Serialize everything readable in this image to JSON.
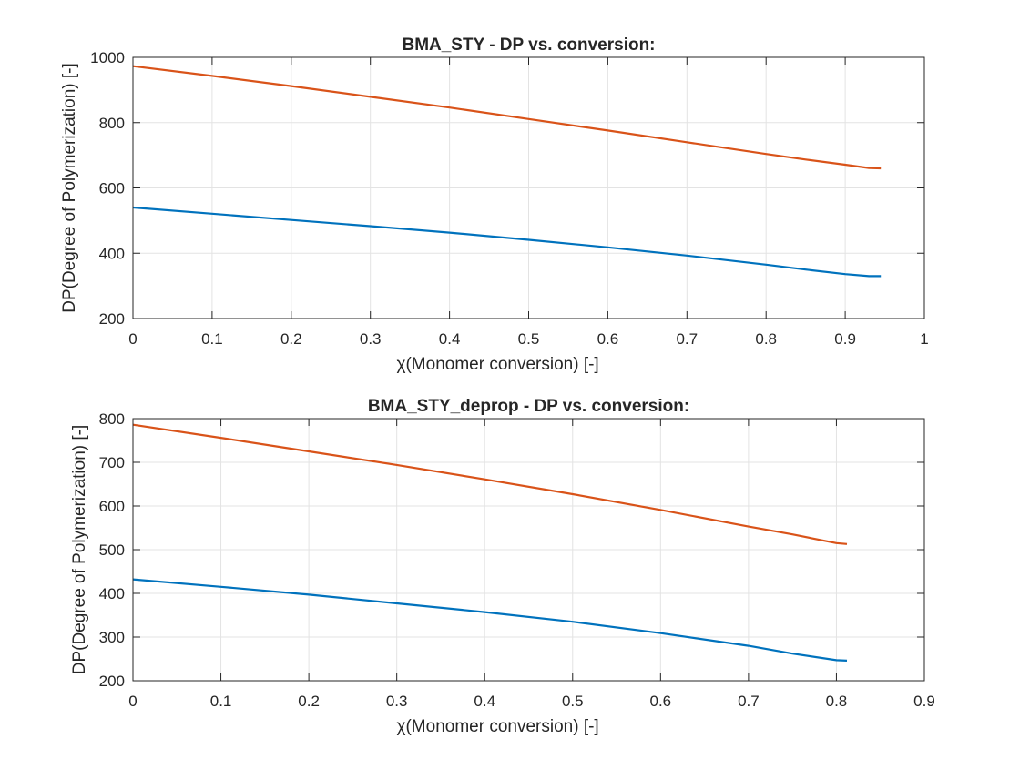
{
  "chart_data": [
    {
      "type": "line",
      "title": "BMA_STY - DP vs. conversion:",
      "xlabel": "χ(Monomer conversion) [-]",
      "ylabel": "DP(Degree of Polymerization) [-]",
      "xlim": [
        0,
        1
      ],
      "ylim": [
        200,
        1000
      ],
      "xticks": [
        "0",
        "0.1",
        "0.2",
        "0.3",
        "0.4",
        "0.5",
        "0.6",
        "0.7",
        "0.8",
        "0.9",
        "1"
      ],
      "yticks": [
        "200",
        "400",
        "600",
        "800",
        "1000"
      ],
      "grid": true,
      "series": [
        {
          "color": "#0072BD",
          "x": [
            0,
            0.1,
            0.2,
            0.3,
            0.4,
            0.5,
            0.6,
            0.7,
            0.8,
            0.85,
            0.9,
            0.93,
            0.945
          ],
          "y": [
            540,
            521,
            502,
            483,
            463,
            441,
            418,
            393,
            365,
            350,
            336,
            330,
            330
          ]
        },
        {
          "color": "#D95319",
          "x": [
            0,
            0.1,
            0.2,
            0.3,
            0.4,
            0.5,
            0.6,
            0.7,
            0.8,
            0.85,
            0.9,
            0.93,
            0.945
          ],
          "y": [
            973,
            943,
            912,
            879,
            846,
            811,
            776,
            740,
            704,
            687,
            671,
            661,
            660
          ]
        }
      ]
    },
    {
      "type": "line",
      "title": "BMA_STY_deprop - DP vs. conversion:",
      "xlabel": "χ(Monomer conversion) [-]",
      "ylabel": "DP(Degree of Polymerization) [-]",
      "xlim": [
        0,
        0.9
      ],
      "ylim": [
        200,
        800
      ],
      "xticks": [
        "0",
        "0.1",
        "0.2",
        "0.3",
        "0.4",
        "0.5",
        "0.6",
        "0.7",
        "0.8",
        "0.9"
      ],
      "yticks": [
        "200",
        "300",
        "400",
        "500",
        "600",
        "700",
        "800"
      ],
      "grid": true,
      "series": [
        {
          "color": "#0072BD",
          "x": [
            0,
            0.1,
            0.2,
            0.3,
            0.4,
            0.5,
            0.6,
            0.7,
            0.75,
            0.8,
            0.812
          ],
          "y": [
            432,
            415,
            397,
            377,
            357,
            335,
            309,
            280,
            262,
            247,
            246
          ]
        },
        {
          "color": "#D95319",
          "x": [
            0,
            0.1,
            0.2,
            0.3,
            0.4,
            0.5,
            0.6,
            0.7,
            0.75,
            0.8,
            0.812
          ],
          "y": [
            786,
            756,
            725,
            694,
            661,
            627,
            591,
            553,
            535,
            515,
            513
          ]
        }
      ]
    }
  ]
}
